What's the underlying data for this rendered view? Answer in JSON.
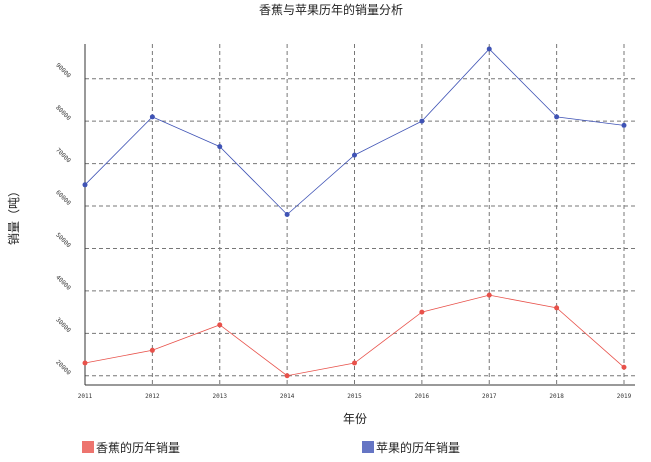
{
  "chart_data": {
    "type": "line",
    "title": "香蕉与苹果历年的销量分析",
    "xlabel": "年份",
    "ylabel": "销量（吨）",
    "categories": [
      "2011",
      "2012",
      "2013",
      "2014",
      "2015",
      "2016",
      "2017",
      "2018",
      "2019"
    ],
    "y_ticks": [
      "20000",
      "30000",
      "40000",
      "50000",
      "60000",
      "70000",
      "80000",
      "90000"
    ],
    "ylim": [
      19000,
      97000
    ],
    "grid": true,
    "legend_position": "bottom",
    "series": [
      {
        "name": "香蕉的历年销量",
        "color": "#e8514a",
        "values": [
          23000,
          26000,
          32000,
          20000,
          23000,
          35000,
          39000,
          36000,
          22000
        ]
      },
      {
        "name": "苹果的历年销量",
        "color": "#3f53b5",
        "values": [
          65000,
          81000,
          74000,
          58000,
          72000,
          80000,
          97000,
          81000,
          79000
        ]
      }
    ]
  }
}
